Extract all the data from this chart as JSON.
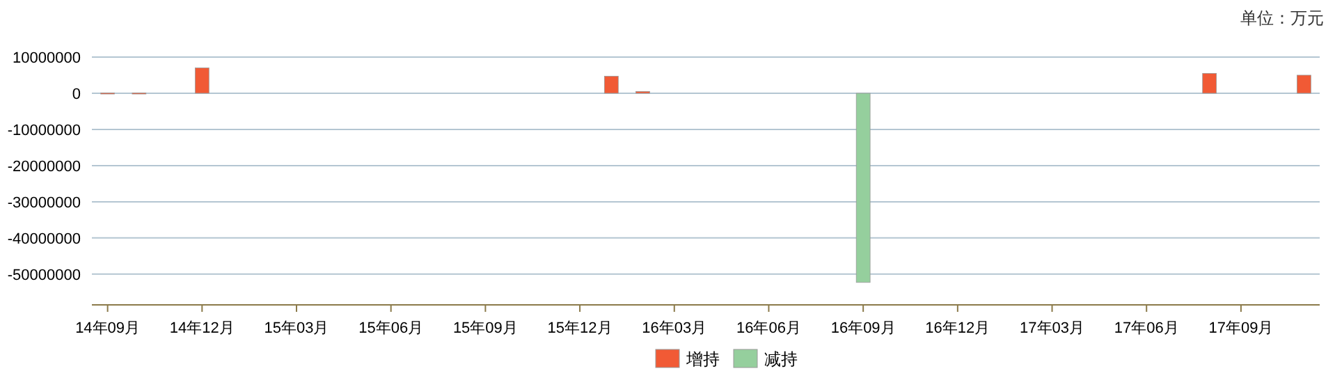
{
  "chart_data": {
    "type": "bar",
    "categories": [
      "14年09月",
      null,
      null,
      "14年12月",
      null,
      null,
      "15年03月",
      null,
      null,
      "15年06月",
      null,
      null,
      "15年09月",
      null,
      null,
      "15年12月",
      null,
      null,
      "16年03月",
      null,
      null,
      "16年06月",
      null,
      null,
      "16年09月",
      null,
      null,
      "16年12月",
      null,
      null,
      "17年03月",
      null,
      null,
      "17年06月",
      null,
      null,
      "17年09月",
      null,
      null
    ],
    "series": [
      {
        "name": "增持",
        "color": "#f15a35",
        "values": [
          100000,
          100000,
          null,
          7000000,
          null,
          null,
          null,
          null,
          null,
          null,
          null,
          null,
          null,
          null,
          null,
          null,
          4700000,
          500000,
          null,
          null,
          null,
          null,
          null,
          null,
          null,
          null,
          null,
          null,
          null,
          null,
          null,
          null,
          null,
          null,
          null,
          5500000,
          null,
          null,
          5000000
        ]
      },
      {
        "name": "减持",
        "color": "#95cf9d",
        "values": [
          null,
          null,
          null,
          null,
          null,
          null,
          null,
          null,
          null,
          null,
          null,
          null,
          null,
          null,
          null,
          null,
          null,
          null,
          null,
          null,
          null,
          null,
          null,
          null,
          -52300000,
          null,
          null,
          null,
          null,
          null,
          null,
          null,
          null,
          null,
          null,
          null,
          null,
          null,
          null
        ]
      }
    ],
    "ylim": [
      -58500000,
      10000000
    ],
    "yticks": [
      10000000,
      0,
      -10000000,
      -20000000,
      -30000000,
      -40000000,
      -50000000
    ],
    "grid": "y",
    "legend": "bottom",
    "annotations": [
      "单位：万元"
    ]
  }
}
